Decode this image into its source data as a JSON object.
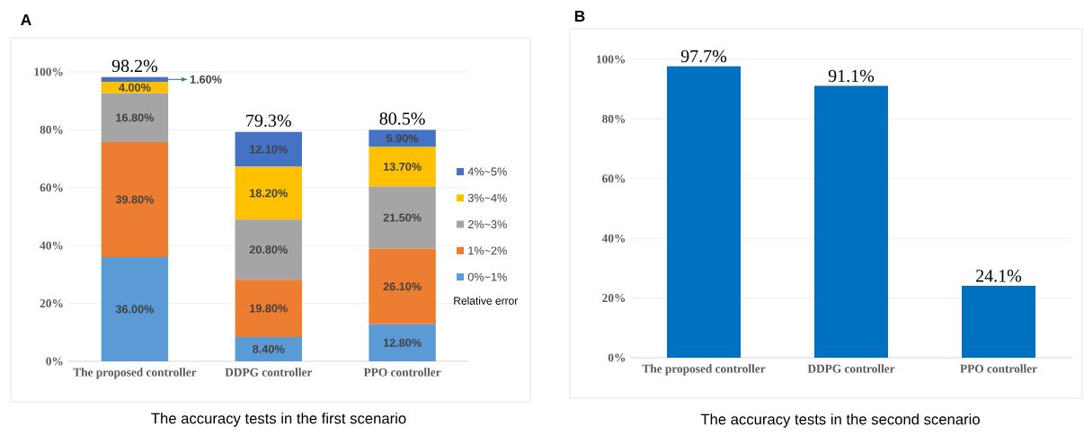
{
  "chart_data": [
    {
      "type": "bar",
      "title": "A",
      "xlabel": "The accuracy tests in the first scenario",
      "categories": [
        "The proposed controller",
        "DDPG controller",
        "PPO controller"
      ],
      "stacked": true,
      "series": [
        {
          "name": "0%~1%",
          "color": "#5b9bd5",
          "values": [
            36.0,
            8.4,
            12.8
          ],
          "value_labels": [
            "36.00%",
            "8.40%",
            "12.80%"
          ]
        },
        {
          "name": "1%~2%",
          "color": "#ed7d31",
          "values": [
            39.8,
            19.8,
            26.1
          ],
          "value_labels": [
            "39.80%",
            "19.80%",
            "26.10%"
          ]
        },
        {
          "name": "2%~3%",
          "color": "#a5a5a5",
          "values": [
            16.8,
            20.8,
            21.5
          ],
          "value_labels": [
            "16.80%",
            "20.80%",
            "21.50%"
          ]
        },
        {
          "name": "3%~4%",
          "color": "#ffc000",
          "values": [
            4.0,
            18.2,
            13.7
          ],
          "value_labels": [
            "4.00%",
            "18.20%",
            "13.70%"
          ]
        },
        {
          "name": "4%~5%",
          "color": "#4472c4",
          "values": [
            1.6,
            12.1,
            5.9
          ],
          "value_labels": [
            "1.60%",
            "12.10%",
            "5.90%"
          ]
        }
      ],
      "annotations": [
        {
          "text": "98.2%",
          "x": "The proposed controller",
          "y": 98.2
        },
        {
          "text": "79.3%",
          "x": "DDPG controller",
          "y": 79.3
        },
        {
          "text": "80.5%",
          "x": "PPO controller",
          "y": 80
        }
      ],
      "ylim": [
        0,
        100
      ],
      "yticks": [
        {
          "value": 0,
          "label": "0%"
        },
        {
          "value": 20,
          "label": "20%"
        },
        {
          "value": 40,
          "label": "40%"
        },
        {
          "value": 60,
          "label": "60%"
        },
        {
          "value": 80,
          "label": "80%"
        },
        {
          "value": 100,
          "label": "100%"
        }
      ],
      "grid": "y",
      "legend": "right",
      "legend_title": "Relative error"
    },
    {
      "type": "bar",
      "title": "B",
      "xlabel": "The accuracy tests in the second scenario",
      "categories": [
        "The proposed controller",
        "DDPG controller",
        "PPO controller"
      ],
      "values": [
        97.7,
        91.1,
        24.1
      ],
      "color": "#0070c0",
      "value_labels": [
        "97.7%",
        "91.1%",
        "24.1%"
      ],
      "ylim": [
        0,
        100
      ],
      "yticks": [
        {
          "value": 0,
          "label": "0%"
        },
        {
          "value": 20,
          "label": "20%"
        },
        {
          "value": 40,
          "label": "40%"
        },
        {
          "value": 60,
          "label": "60%"
        },
        {
          "value": 80,
          "label": "80%"
        },
        {
          "value": 100,
          "label": "100%"
        }
      ],
      "grid": "y"
    }
  ]
}
